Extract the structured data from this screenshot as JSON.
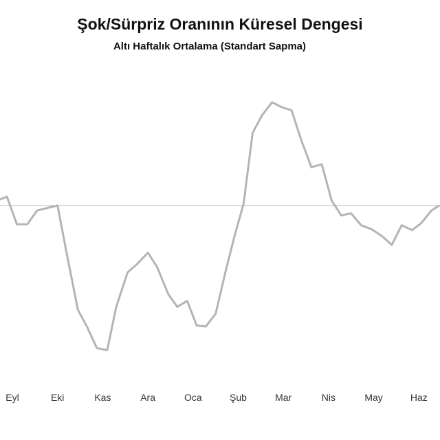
{
  "chart_data": {
    "type": "line",
    "title": "Şok/Sürpriz Oranının Küresel Dengesi",
    "subtitle": "Altı Haftalık Ortalama (Standart Sapma)",
    "xlabel": "",
    "ylabel": "",
    "categories": [
      "Eyl",
      "Eki",
      "Kas",
      "Ara",
      "Oca",
      "Şub",
      "Mar",
      "Nis",
      "May",
      "Haz"
    ],
    "grid": false,
    "legend": "none",
    "reference_line_y": 0,
    "ylim": [
      -1.5,
      1.05
    ],
    "color": "#b4b4b4",
    "series": [
      {
        "x": [
          -0.35,
          -0.12,
          0.1,
          0.33,
          0.55,
          1.0,
          1.22,
          1.45,
          1.65,
          1.87,
          2.1,
          2.3,
          2.55,
          2.75,
          3.0,
          3.2,
          3.45,
          3.65,
          3.87,
          4.08,
          4.28,
          4.5,
          4.72,
          4.93,
          5.12,
          5.32,
          5.53,
          5.75,
          5.97,
          6.18,
          6.4,
          6.62,
          6.85,
          7.07,
          7.28,
          7.5,
          7.72,
          7.95,
          8.18,
          8.4,
          8.62,
          8.85,
          9.05,
          9.28,
          9.45
        ],
        "values": [
          0.05,
          0.09,
          -0.19,
          -0.19,
          -0.05,
          0.0,
          -0.53,
          -1.06,
          -1.23,
          -1.45,
          -1.47,
          -1.03,
          -0.68,
          -0.6,
          -0.48,
          -0.62,
          -0.9,
          -1.03,
          -0.97,
          -1.22,
          -1.23,
          -1.1,
          -0.67,
          -0.29,
          0.02,
          0.74,
          0.92,
          1.05,
          1.0,
          0.97,
          0.66,
          0.39,
          0.42,
          0.05,
          -0.1,
          -0.08,
          -0.2,
          -0.24,
          -0.31,
          -0.4,
          -0.2,
          -0.25,
          -0.18,
          -0.05,
          0.0
        ]
      }
    ]
  }
}
